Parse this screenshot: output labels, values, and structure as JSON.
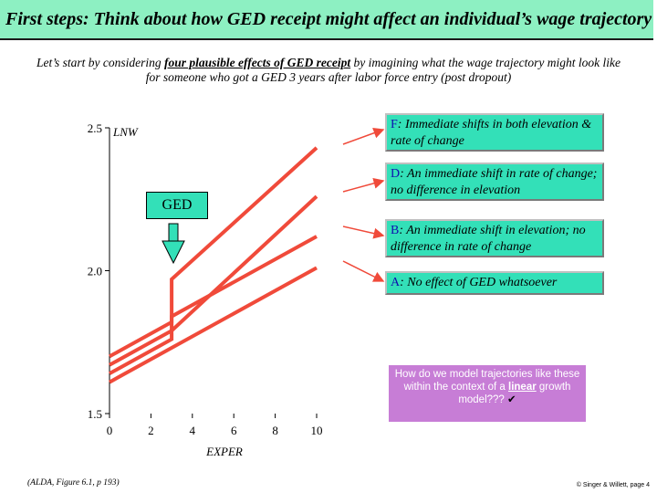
{
  "header": {
    "title": "First steps: Think about how GED receipt might affect an individual’s wage trajectory"
  },
  "intro": {
    "part1": "Let’s start by considering ",
    "emphasis": "four plausible effects of GED receipt",
    "part2": " by imagining what the wage trajectory might look like for someone who got a GED 3 years after labor force entry (post dropout)"
  },
  "callouts": {
    "f": {
      "letter": "F",
      "text": ": Immediate shifts in both elevation & rate of change"
    },
    "d": {
      "letter": "D",
      "text": ": An immediate shift in rate of change; no difference in elevation"
    },
    "b": {
      "letter": "B",
      "text": ": An immediate shift in elevation; no difference in rate of change"
    },
    "a": {
      "letter": "A",
      "text": ": No effect of GED whatsoever"
    }
  },
  "ged_label": "GED",
  "question": {
    "part1": "How do we model trajectories like these within the context of a ",
    "emphasis": "linear",
    "part2": " growth model??? "
  },
  "icons": {
    "question_mark": "checkmark-icon"
  },
  "footer": {
    "citation": "(ALDA, Figure 6.1, p 193)",
    "credit": "© Singer & Willett, page 4"
  },
  "colors": {
    "title_bg": "#8df0c2",
    "callout_bg": "#33e0b8",
    "line": "#f04a3a",
    "ged_arrow": "#33e0b8",
    "question_bg": "#c77dd6"
  },
  "chart_data": {
    "type": "line",
    "title": "",
    "xlabel": "EXPER",
    "ylabel": "LNW",
    "xlim": [
      0,
      10
    ],
    "ylim": [
      1.5,
      2.5
    ],
    "xticks": [
      "0",
      "2",
      "4",
      "6",
      "8",
      "10"
    ],
    "yticks": [
      "1.5",
      "2.0",
      "2.5"
    ],
    "ged_time": 3,
    "series": [
      {
        "name": "F",
        "x": [
          0,
          3,
          3,
          10
        ],
        "y": [
          1.7,
          1.82,
          1.97,
          2.43
        ]
      },
      {
        "name": "D",
        "x": [
          0,
          3,
          10
        ],
        "y": [
          1.67,
          1.79,
          2.26
        ]
      },
      {
        "name": "B",
        "x": [
          0,
          3,
          3,
          10
        ],
        "y": [
          1.64,
          1.76,
          1.84,
          2.12
        ]
      },
      {
        "name": "A",
        "x": [
          0,
          10
        ],
        "y": [
          1.61,
          2.01
        ]
      }
    ]
  }
}
